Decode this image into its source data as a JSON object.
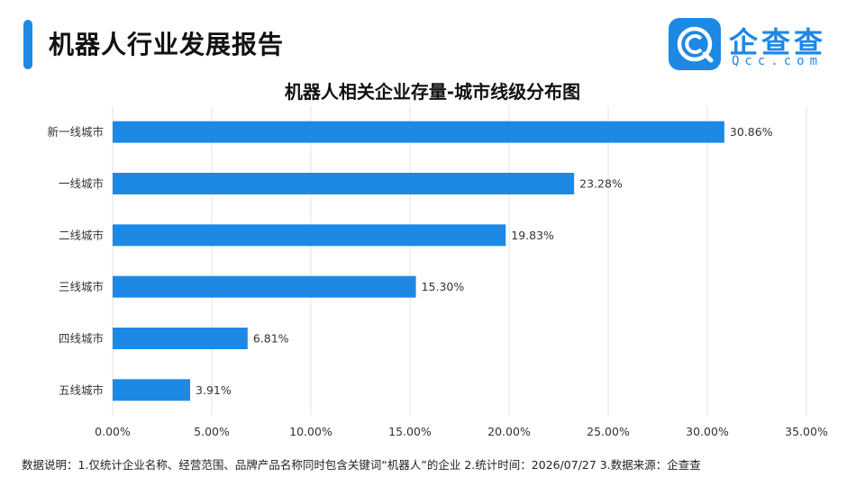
{
  "header": {
    "report_title": "机器人行业发展报告",
    "accent_color": "#1e88e5"
  },
  "logo": {
    "name": "企查查",
    "domain": "Qcc.com",
    "icon": "qcc-logo-icon",
    "color": "#1e88e5"
  },
  "chart_data": {
    "type": "bar",
    "orientation": "horizontal",
    "title": "机器人相关企业存量-城市线级分布图",
    "categories": [
      "新一线城市",
      "一线城市",
      "二线城市",
      "三线城市",
      "四线城市",
      "五线城市"
    ],
    "values": [
      30.86,
      23.28,
      19.83,
      15.3,
      6.81,
      3.91
    ],
    "value_labels": [
      "30.86%",
      "23.28%",
      "19.83%",
      "15.30%",
      "6.81%",
      "3.91%"
    ],
    "xlim": [
      0,
      35
    ],
    "x_ticks": [
      "0.00%",
      "5.00%",
      "10.00%",
      "15.00%",
      "20.00%",
      "25.00%",
      "30.00%",
      "35.00%"
    ],
    "grid": "vertical",
    "bar_color": "#1e88e5",
    "xlabel": "",
    "ylabel": ""
  },
  "footer": {
    "note": "数据说明：1.仅统计企业名称、经营范围、品牌产品名称同时包含关键词“机器人”的企业   2.统计时间：2026/07/27   3.数据来源：企查查"
  }
}
